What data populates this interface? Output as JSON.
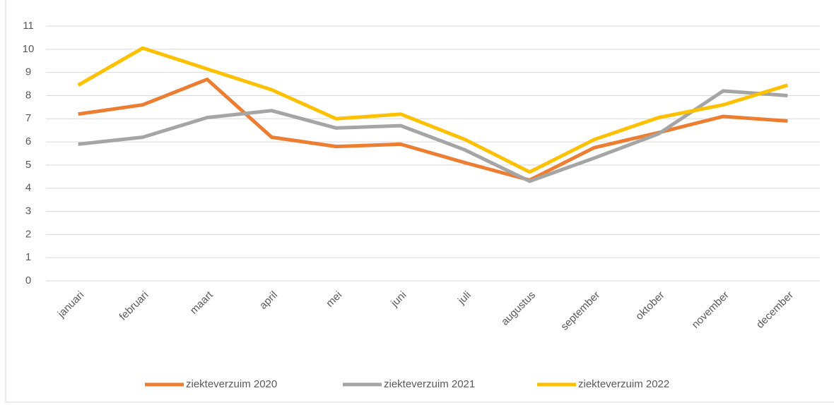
{
  "chart_data": {
    "type": "line",
    "categories": [
      "januari",
      "februari",
      "maart",
      "april",
      "mei",
      "juni",
      "juli",
      "augustus",
      "september",
      "oktober",
      "november",
      "december"
    ],
    "series": [
      {
        "name": "ziekteverzuim 2020",
        "color": "#ed7d31",
        "values": [
          7.2,
          7.6,
          8.7,
          6.2,
          5.8,
          5.9,
          5.1,
          4.35,
          5.75,
          6.4,
          7.1,
          6.9
        ]
      },
      {
        "name": "ziekteverzuim 2021",
        "color": "#a5a5a5",
        "values": [
          5.9,
          6.2,
          7.05,
          7.35,
          6.6,
          6.7,
          5.65,
          4.3,
          5.3,
          6.35,
          8.2,
          8.0
        ]
      },
      {
        "name": "ziekteverzuim 2022",
        "color": "#ffc000",
        "values": [
          8.45,
          10.05,
          9.15,
          8.25,
          7.0,
          7.2,
          6.1,
          4.7,
          6.1,
          7.05,
          7.6,
          8.45
        ]
      }
    ],
    "ylim": [
      0,
      11
    ],
    "yticks": [
      0,
      1,
      2,
      3,
      4,
      5,
      6,
      7,
      8,
      9,
      10,
      11
    ],
    "grid": true,
    "legend": "bottom"
  }
}
